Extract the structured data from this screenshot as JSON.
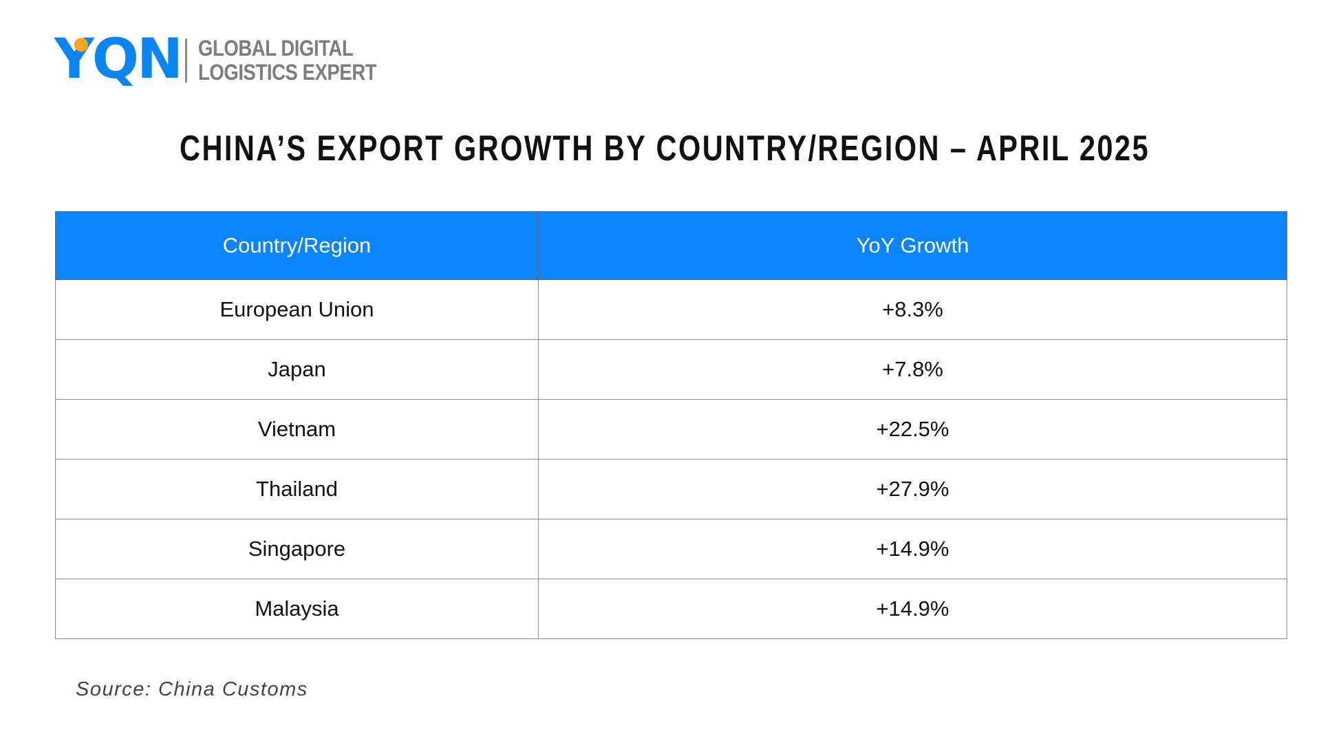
{
  "logo": {
    "wordmark": "YQN",
    "tagline_line1": "GLOBAL DIGITAL",
    "tagline_line2": "LOGISTICS EXPERT",
    "colors": {
      "wordmark": "#0a84f0",
      "dot": "#f5a623",
      "tagline": "#7d7d7d"
    }
  },
  "chart_data": {
    "type": "table",
    "title": "CHINA’S EXPORT GROWTH BY COUNTRY/REGION – APRIL 2025",
    "columns": [
      "Country/Region",
      "YoY Growth"
    ],
    "rows": [
      [
        "European Union",
        "+8.3%"
      ],
      [
        "Japan",
        "+7.8%"
      ],
      [
        "Vietnam",
        "+22.5%"
      ],
      [
        "Thailand",
        "+27.9%"
      ],
      [
        "Singapore",
        "+14.9%"
      ],
      [
        "Malaysia",
        "+14.9%"
      ]
    ],
    "header_color": "#0a84ff"
  },
  "source": "Source: China Customs"
}
